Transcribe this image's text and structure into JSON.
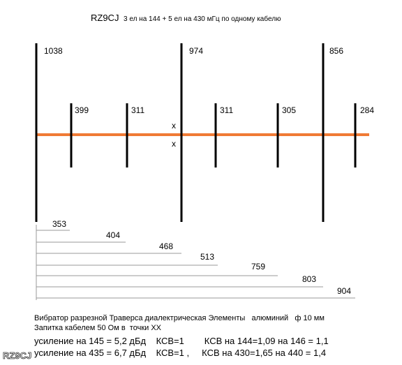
{
  "header": {
    "callsign": "RZ9CJ",
    "title": "3 ел на 144  + 5 ел на 430 мГц  по одному кабелю"
  },
  "elements": {
    "long": [
      "1038",
      "974",
      "856"
    ],
    "short": [
      "399",
      "311",
      "311",
      "305",
      "284"
    ]
  },
  "feed_marks": [
    "x",
    "x"
  ],
  "spacings": [
    "353",
    "404",
    "468",
    "513",
    "759",
    "803",
    "904"
  ],
  "notes": [
    "Вибратор разрезной Траверса диалектрическая Элементы   алюминий   ф 10 мм",
    "Запитка кабелем 50 Ом в  точки XX",
    "усиление на 145 = 5,2 дБд    КСВ=1        КСВ на 144=1,09 на 146 = 1,1",
    "усиление на 435 = 6,7 дБд    КСВ=1 ,     КСВ на 430=1,65 на 440 = 1,4"
  ],
  "watermark": "RZ9CJ"
}
